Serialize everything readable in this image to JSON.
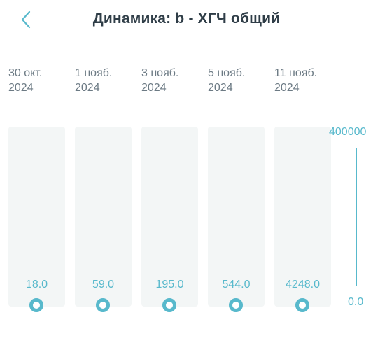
{
  "header": {
    "title": "Динамика: b - ХГЧ общий",
    "back_icon": "chevron-left-icon"
  },
  "colors": {
    "accent": "#58b9cc",
    "column_bg": "#f3f6f6",
    "text_muted": "#6c7a84",
    "title_text": "#2f3d47"
  },
  "entries": [
    {
      "date_day": "30 окт.",
      "date_year": "2024",
      "value": "18.0"
    },
    {
      "date_day": "1 нояб.",
      "date_year": "2024",
      "value": "59.0"
    },
    {
      "date_day": "3 нояб.",
      "date_year": "2024",
      "value": "195.0"
    },
    {
      "date_day": "5 нояб.",
      "date_year": "2024",
      "value": "544.0"
    },
    {
      "date_day": "11 нояб.",
      "date_year": "2024",
      "value": "4248.0"
    }
  ],
  "axis": {
    "max_label": "400000",
    "min_label": "0.0"
  },
  "chart_data": {
    "type": "scatter",
    "categories": [
      "30 окт. 2024",
      "1 нояб. 2024",
      "3 нояб. 2024",
      "5 нояб. 2024",
      "11 нояб. 2024"
    ],
    "values": [
      18.0,
      59.0,
      195.0,
      544.0,
      4248.0
    ],
    "ylim": [
      0.0,
      400000
    ]
  }
}
